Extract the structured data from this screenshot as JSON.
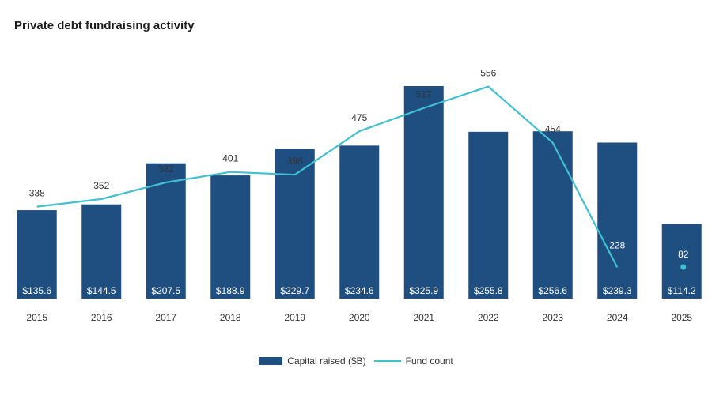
{
  "chart_data": {
    "type": "bar",
    "title": "Private debt fundraising activity",
    "categories": [
      "2015",
      "2016",
      "2017",
      "2018",
      "2019",
      "2020",
      "2021",
      "2022",
      "2023",
      "2024",
      "2025"
    ],
    "series": [
      {
        "name": "Capital raised ($B)",
        "type": "bar",
        "values": [
          135.6,
          144.5,
          207.5,
          188.9,
          229.7,
          234.6,
          325.9,
          255.8,
          256.6,
          239.3,
          114.2
        ],
        "labels": [
          "$135.6",
          "$144.5",
          "$207.5",
          "$188.9",
          "$229.7",
          "$234.6",
          "$325.9",
          "$255.8",
          "$256.6",
          "$239.3",
          "$114.2"
        ],
        "color": "#1f4e80"
      },
      {
        "name": "Fund count",
        "type": "line",
        "values": [
          338,
          352,
          382,
          401,
          396,
          475,
          517,
          556,
          454,
          228,
          82
        ],
        "color": "#3fc1d1"
      }
    ],
    "line_ends_at": "2024",
    "last_point_marker": "dot",
    "legend_position": "bottom-center",
    "grid": false
  }
}
